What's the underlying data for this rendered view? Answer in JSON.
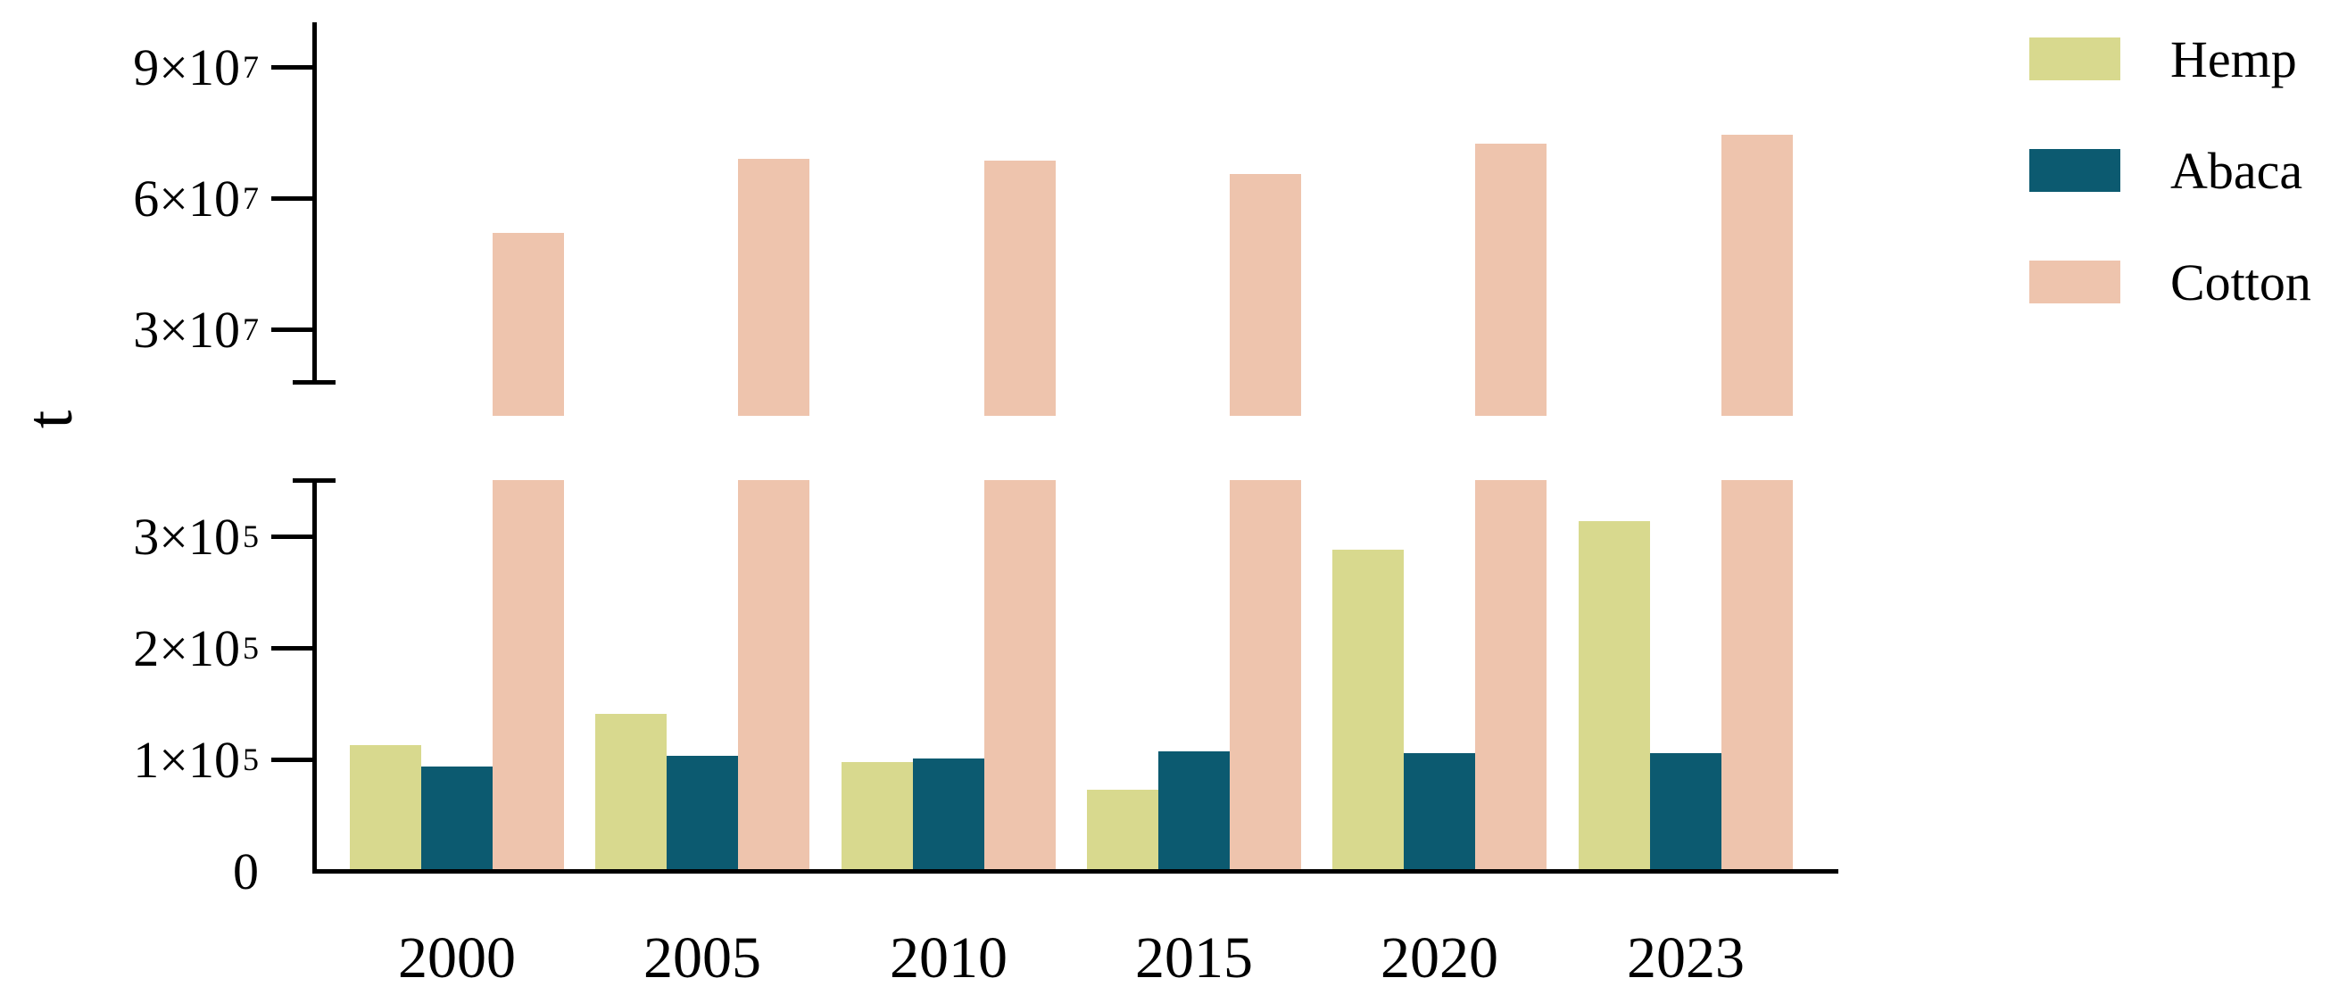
{
  "figure": {
    "y_axis_title": "t",
    "background_color": "#ffffff",
    "axis_color": "#000000"
  },
  "legend": {
    "position": "right",
    "items": [
      {
        "label": "Hemp",
        "color": "#d8d98e"
      },
      {
        "label": "Abaca",
        "color": "#0c5a70"
      },
      {
        "label": "Cotton",
        "color": "#eec4ad"
      }
    ]
  },
  "chart_data": {
    "type": "bar",
    "title": "",
    "xlabel": "",
    "ylabel": "t",
    "unit": "tonnes",
    "grid": false,
    "legend_position": "right",
    "categories": [
      "2000",
      "2005",
      "2010",
      "2015",
      "2020",
      "2023"
    ],
    "series": [
      {
        "name": "Hemp",
        "color": "#d8d98e",
        "panel": "bottom",
        "values": [
          113000,
          141000,
          98000,
          73000,
          288000,
          314000
        ]
      },
      {
        "name": "Abaca",
        "color": "#0c5a70",
        "panel": "bottom",
        "values": [
          94000,
          103000,
          101000,
          107000,
          106000,
          106000
        ]
      },
      {
        "name": "Cotton",
        "color": "#eec4ad",
        "panel": "top",
        "values": [
          52000000,
          69000000,
          68500000,
          65500000,
          72500000,
          74500000
        ]
      }
    ],
    "broken_y_axis": {
      "top_panel": {
        "range_shown": [
          18000000,
          100000000
        ],
        "ticks": [
          {
            "mantissa": "3×10",
            "exponent": "7",
            "value": 30000000
          },
          {
            "mantissa": "6×10",
            "exponent": "7",
            "value": 60000000
          },
          {
            "mantissa": "9×10",
            "exponent": "7",
            "value": 90000000
          }
        ]
      },
      "bottom_panel": {
        "range_shown": [
          0,
          352000
        ],
        "ticks": [
          {
            "mantissa": "0",
            "exponent": "",
            "value": 0
          },
          {
            "mantissa": "1×10",
            "exponent": "5",
            "value": 100000
          },
          {
            "mantissa": "2×10",
            "exponent": "5",
            "value": 200000
          },
          {
            "mantissa": "3×10",
            "exponent": "5",
            "value": 300000
          }
        ]
      }
    }
  }
}
